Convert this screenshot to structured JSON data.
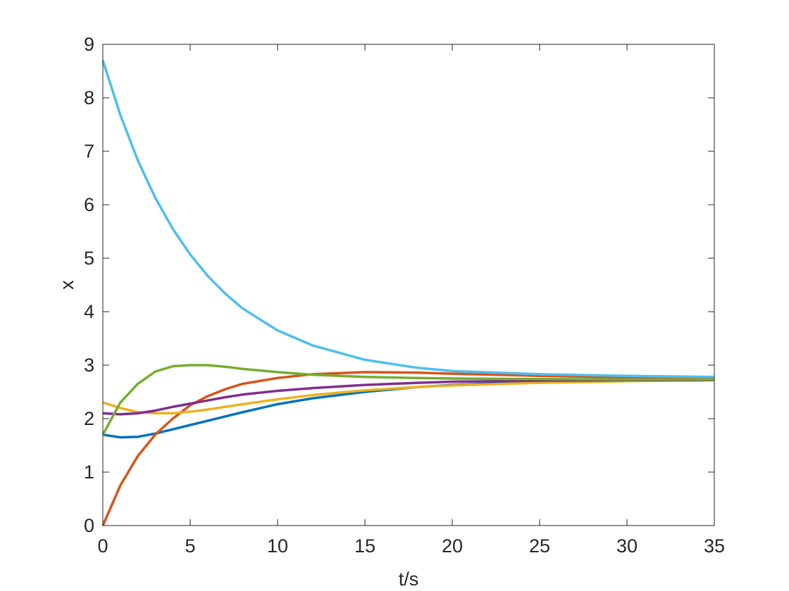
{
  "chart_data": {
    "type": "line",
    "xlabel": "t/s",
    "ylabel": "x",
    "x": [
      0,
      1,
      2,
      3,
      4,
      5,
      6,
      7,
      8,
      10,
      12,
      15,
      18,
      20,
      25,
      30,
      35
    ],
    "series": [
      {
        "color": "#0072bd",
        "values": [
          1.7,
          1.65,
          1.66,
          1.72,
          1.8,
          1.88,
          1.96,
          2.04,
          2.12,
          2.27,
          2.38,
          2.5,
          2.59,
          2.63,
          2.69,
          2.71,
          2.72
        ]
      },
      {
        "color": "#d95319",
        "values": [
          0,
          0.75,
          1.3,
          1.7,
          2.0,
          2.25,
          2.42,
          2.55,
          2.65,
          2.76,
          2.83,
          2.87,
          2.86,
          2.84,
          2.8,
          2.77,
          2.75
        ]
      },
      {
        "color": "#edb120",
        "values": [
          2.3,
          2.2,
          2.12,
          2.1,
          2.1,
          2.13,
          2.17,
          2.22,
          2.27,
          2.36,
          2.44,
          2.53,
          2.59,
          2.62,
          2.67,
          2.7,
          2.72
        ]
      },
      {
        "color": "#7e2f8e",
        "values": [
          2.1,
          2.08,
          2.1,
          2.15,
          2.22,
          2.28,
          2.34,
          2.4,
          2.45,
          2.52,
          2.57,
          2.63,
          2.67,
          2.69,
          2.71,
          2.72,
          2.72
        ]
      },
      {
        "color": "#77ac30",
        "values": [
          1.7,
          2.3,
          2.65,
          2.88,
          2.98,
          3.0,
          3.0,
          2.97,
          2.93,
          2.87,
          2.82,
          2.78,
          2.76,
          2.75,
          2.74,
          2.73,
          2.73
        ]
      },
      {
        "color": "#4dbeee",
        "values": [
          8.7,
          7.68,
          6.83,
          6.13,
          5.55,
          5.07,
          4.67,
          4.34,
          4.06,
          3.65,
          3.37,
          3.1,
          2.95,
          2.89,
          2.83,
          2.8,
          2.78
        ]
      }
    ],
    "xlim": [
      0,
      35
    ],
    "xticks": [
      0,
      5,
      10,
      15,
      20,
      25,
      30,
      35
    ],
    "ylim": [
      0,
      9
    ],
    "yticks": [
      0,
      1,
      2,
      3,
      4,
      5,
      6,
      7,
      8,
      9
    ],
    "grid": false,
    "box": true
  }
}
